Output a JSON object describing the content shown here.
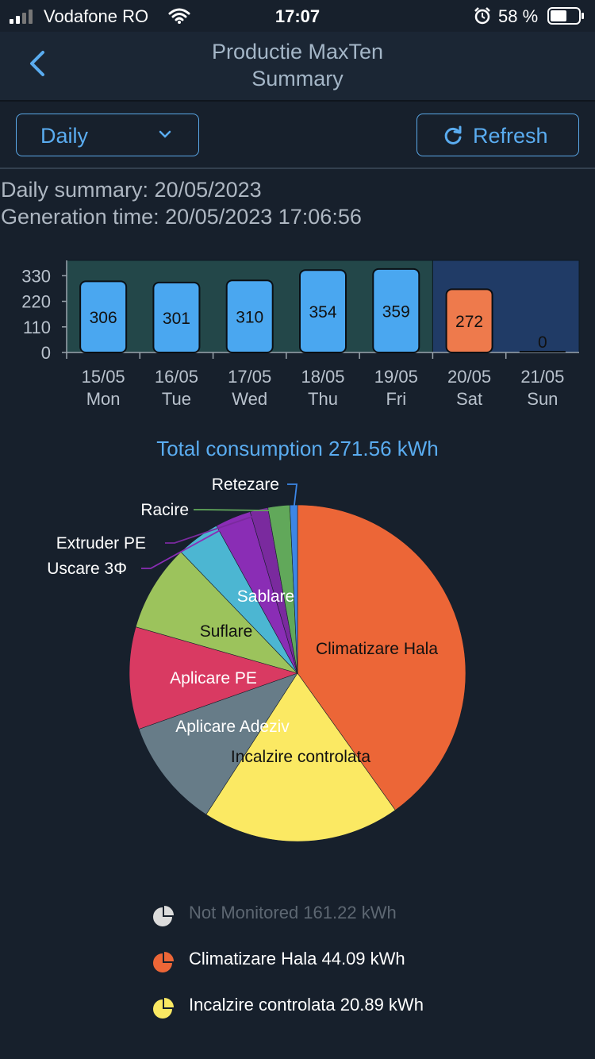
{
  "status": {
    "carrier": "Vodafone RO",
    "time": "17:07",
    "battery": "58 %"
  },
  "header": {
    "title_line1": "Productie MaxTen",
    "title_line2": "Summary"
  },
  "controls": {
    "period": "Daily",
    "refresh": "Refresh"
  },
  "summary": {
    "daily_label": "Daily summary:",
    "daily_value": "20/05/2023",
    "gen_label": "Generation time:",
    "gen_value": "20/05/2023 17:06:56"
  },
  "colors": {
    "accent": "#5aacf0",
    "bar": "#4aa7f0",
    "bar_current": "#ee7a4c",
    "week_bg": "#234749",
    "current_bg": "#203b66"
  },
  "chart_data": {
    "type": "bar",
    "categories": [
      "15/05",
      "16/05",
      "17/05",
      "18/05",
      "19/05",
      "20/05",
      "21/05"
    ],
    "days": [
      "Mon",
      "Tue",
      "Wed",
      "Thu",
      "Fri",
      "Sat",
      "Sun"
    ],
    "values": [
      306,
      301,
      310,
      354,
      359,
      272,
      0
    ],
    "yticks": [
      330,
      220,
      110,
      0
    ],
    "ylim": [
      0,
      396
    ],
    "highlight_index": 5
  },
  "total_label": "Total consumption 271.56 kWh",
  "pie_data": {
    "type": "pie",
    "slices": [
      {
        "name": "Climatizare Hala",
        "value": 44.09,
        "color": "#ec6637"
      },
      {
        "name": "Incalzire controlata",
        "value": 20.89,
        "color": "#fbe963"
      },
      {
        "name": "Aplicare Adeziv",
        "value": 11.5,
        "color": "#677c88"
      },
      {
        "name": "Aplicare PE",
        "value": 10.8,
        "color": "#d93a62"
      },
      {
        "name": "Suflare",
        "value": 9.2,
        "color": "#9cc35c"
      },
      {
        "name": "Sablare",
        "value": 4.6,
        "color": "#4cb6d2"
      },
      {
        "name": "Uscare 3Φ",
        "value": 3.8,
        "color": "#8a2db5"
      },
      {
        "name": "Extruder PE",
        "value": 1.9,
        "color": "#7a2a9e"
      },
      {
        "name": "Racire",
        "value": 2.3,
        "color": "#61a85a"
      },
      {
        "name": "Retezare",
        "value": 0.8,
        "color": "#3c86e6"
      }
    ]
  },
  "legend": [
    {
      "label": "Not Monitored 161.22 kWh",
      "color": "#dcdcdc",
      "muted": true
    },
    {
      "label": "Climatizare Hala 44.09 kWh",
      "color": "#ec6637",
      "muted": false
    },
    {
      "label": "Incalzire controlata 20.89 kWh",
      "color": "#fbe963",
      "muted": false
    }
  ]
}
